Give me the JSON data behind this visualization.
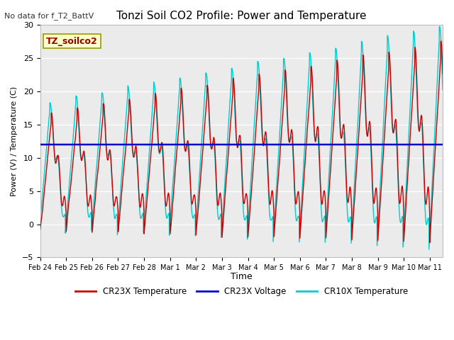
{
  "title": "Tonzi Soil CO2 Profile: Power and Temperature",
  "subtitle": "No data for f_T2_BattV",
  "xlabel": "Time",
  "ylabel": "Power (V) / Temperature (C)",
  "ylim": [
    -5,
    30
  ],
  "yticks": [
    -5,
    0,
    5,
    10,
    15,
    20,
    25,
    30
  ],
  "legend_labels": [
    "CR23X Temperature",
    "CR23X Voltage",
    "CR10X Temperature"
  ],
  "legend_colors": [
    "#cc0000",
    "#0000cc",
    "#00cccc"
  ],
  "bg_color": "#e8e8e8",
  "plot_bg": "#ebebeb",
  "box_label": "TZ_soilco2",
  "box_bg": "#ffffcc",
  "box_border": "#999900",
  "voltage_value": 12.0,
  "start_day": 0,
  "end_day": 15.5,
  "x_tick_labels": [
    "Feb 24",
    "Feb 25",
    "Feb 26",
    "Feb 27",
    "Feb 28",
    "Mar 1",
    "Mar 2",
    "Mar 3",
    "Mar 4",
    "Mar 5",
    "Mar 6",
    "Mar 7",
    "Mar 8",
    "Mar 9",
    "Mar 10",
    "Mar 11"
  ],
  "x_tick_positions": [
    0,
    1,
    2,
    3,
    4,
    5,
    6,
    7,
    8,
    9,
    10,
    11,
    12,
    13,
    14,
    15
  ]
}
